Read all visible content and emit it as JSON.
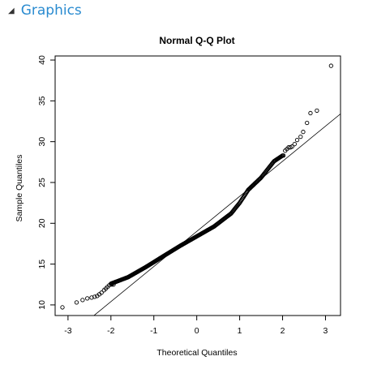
{
  "panel": {
    "title": "Graphics",
    "toggle_icon": "triangle-down-icon"
  },
  "chart_data": {
    "type": "scatter",
    "title": "Normal Q-Q Plot",
    "xlabel": "Theoretical Quantiles",
    "ylabel": "Sample Quantiles",
    "xlim": [
      -3.3,
      3.35
    ],
    "ylim": [
      8.7,
      40.5
    ],
    "xticks": [
      -3,
      -2,
      -1,
      0,
      1,
      2,
      3
    ],
    "yticks": [
      10,
      15,
      20,
      25,
      30,
      35,
      40
    ],
    "reference_line": {
      "intercept": 19.0,
      "slope": 4.3
    },
    "bulk_curve": [
      [
        -2.0,
        12.6
      ],
      [
        -1.6,
        13.4
      ],
      [
        -1.2,
        14.6
      ],
      [
        -0.8,
        15.9
      ],
      [
        -0.4,
        17.2
      ],
      [
        0.0,
        18.4
      ],
      [
        0.4,
        19.6
      ],
      [
        0.8,
        21.2
      ],
      [
        1.0,
        22.5
      ],
      [
        1.2,
        24.1
      ],
      [
        1.5,
        25.6
      ],
      [
        1.8,
        27.6
      ],
      [
        2.0,
        28.3
      ]
    ],
    "points": [
      [
        -3.13,
        9.7
      ],
      [
        -2.8,
        10.3
      ],
      [
        -2.66,
        10.6
      ],
      [
        -2.55,
        10.8
      ],
      [
        -2.45,
        10.9
      ],
      [
        -2.38,
        11.0
      ],
      [
        -2.32,
        11.1
      ],
      [
        -2.27,
        11.3
      ],
      [
        -2.22,
        11.5
      ],
      [
        -2.16,
        11.8
      ],
      [
        -2.12,
        12.0
      ],
      [
        -2.08,
        12.2
      ],
      [
        -2.04,
        12.4
      ],
      [
        -1.98,
        12.5
      ],
      [
        -1.94,
        12.5
      ],
      [
        2.02,
        28.3
      ],
      [
        2.06,
        28.9
      ],
      [
        2.1,
        29.1
      ],
      [
        2.14,
        29.3
      ],
      [
        2.18,
        29.3
      ],
      [
        2.22,
        29.4
      ],
      [
        2.28,
        29.7
      ],
      [
        2.34,
        30.2
      ],
      [
        2.42,
        30.6
      ],
      [
        2.48,
        31.2
      ],
      [
        2.57,
        32.3
      ],
      [
        2.65,
        33.5
      ],
      [
        2.8,
        33.8
      ],
      [
        3.13,
        39.3
      ]
    ]
  }
}
